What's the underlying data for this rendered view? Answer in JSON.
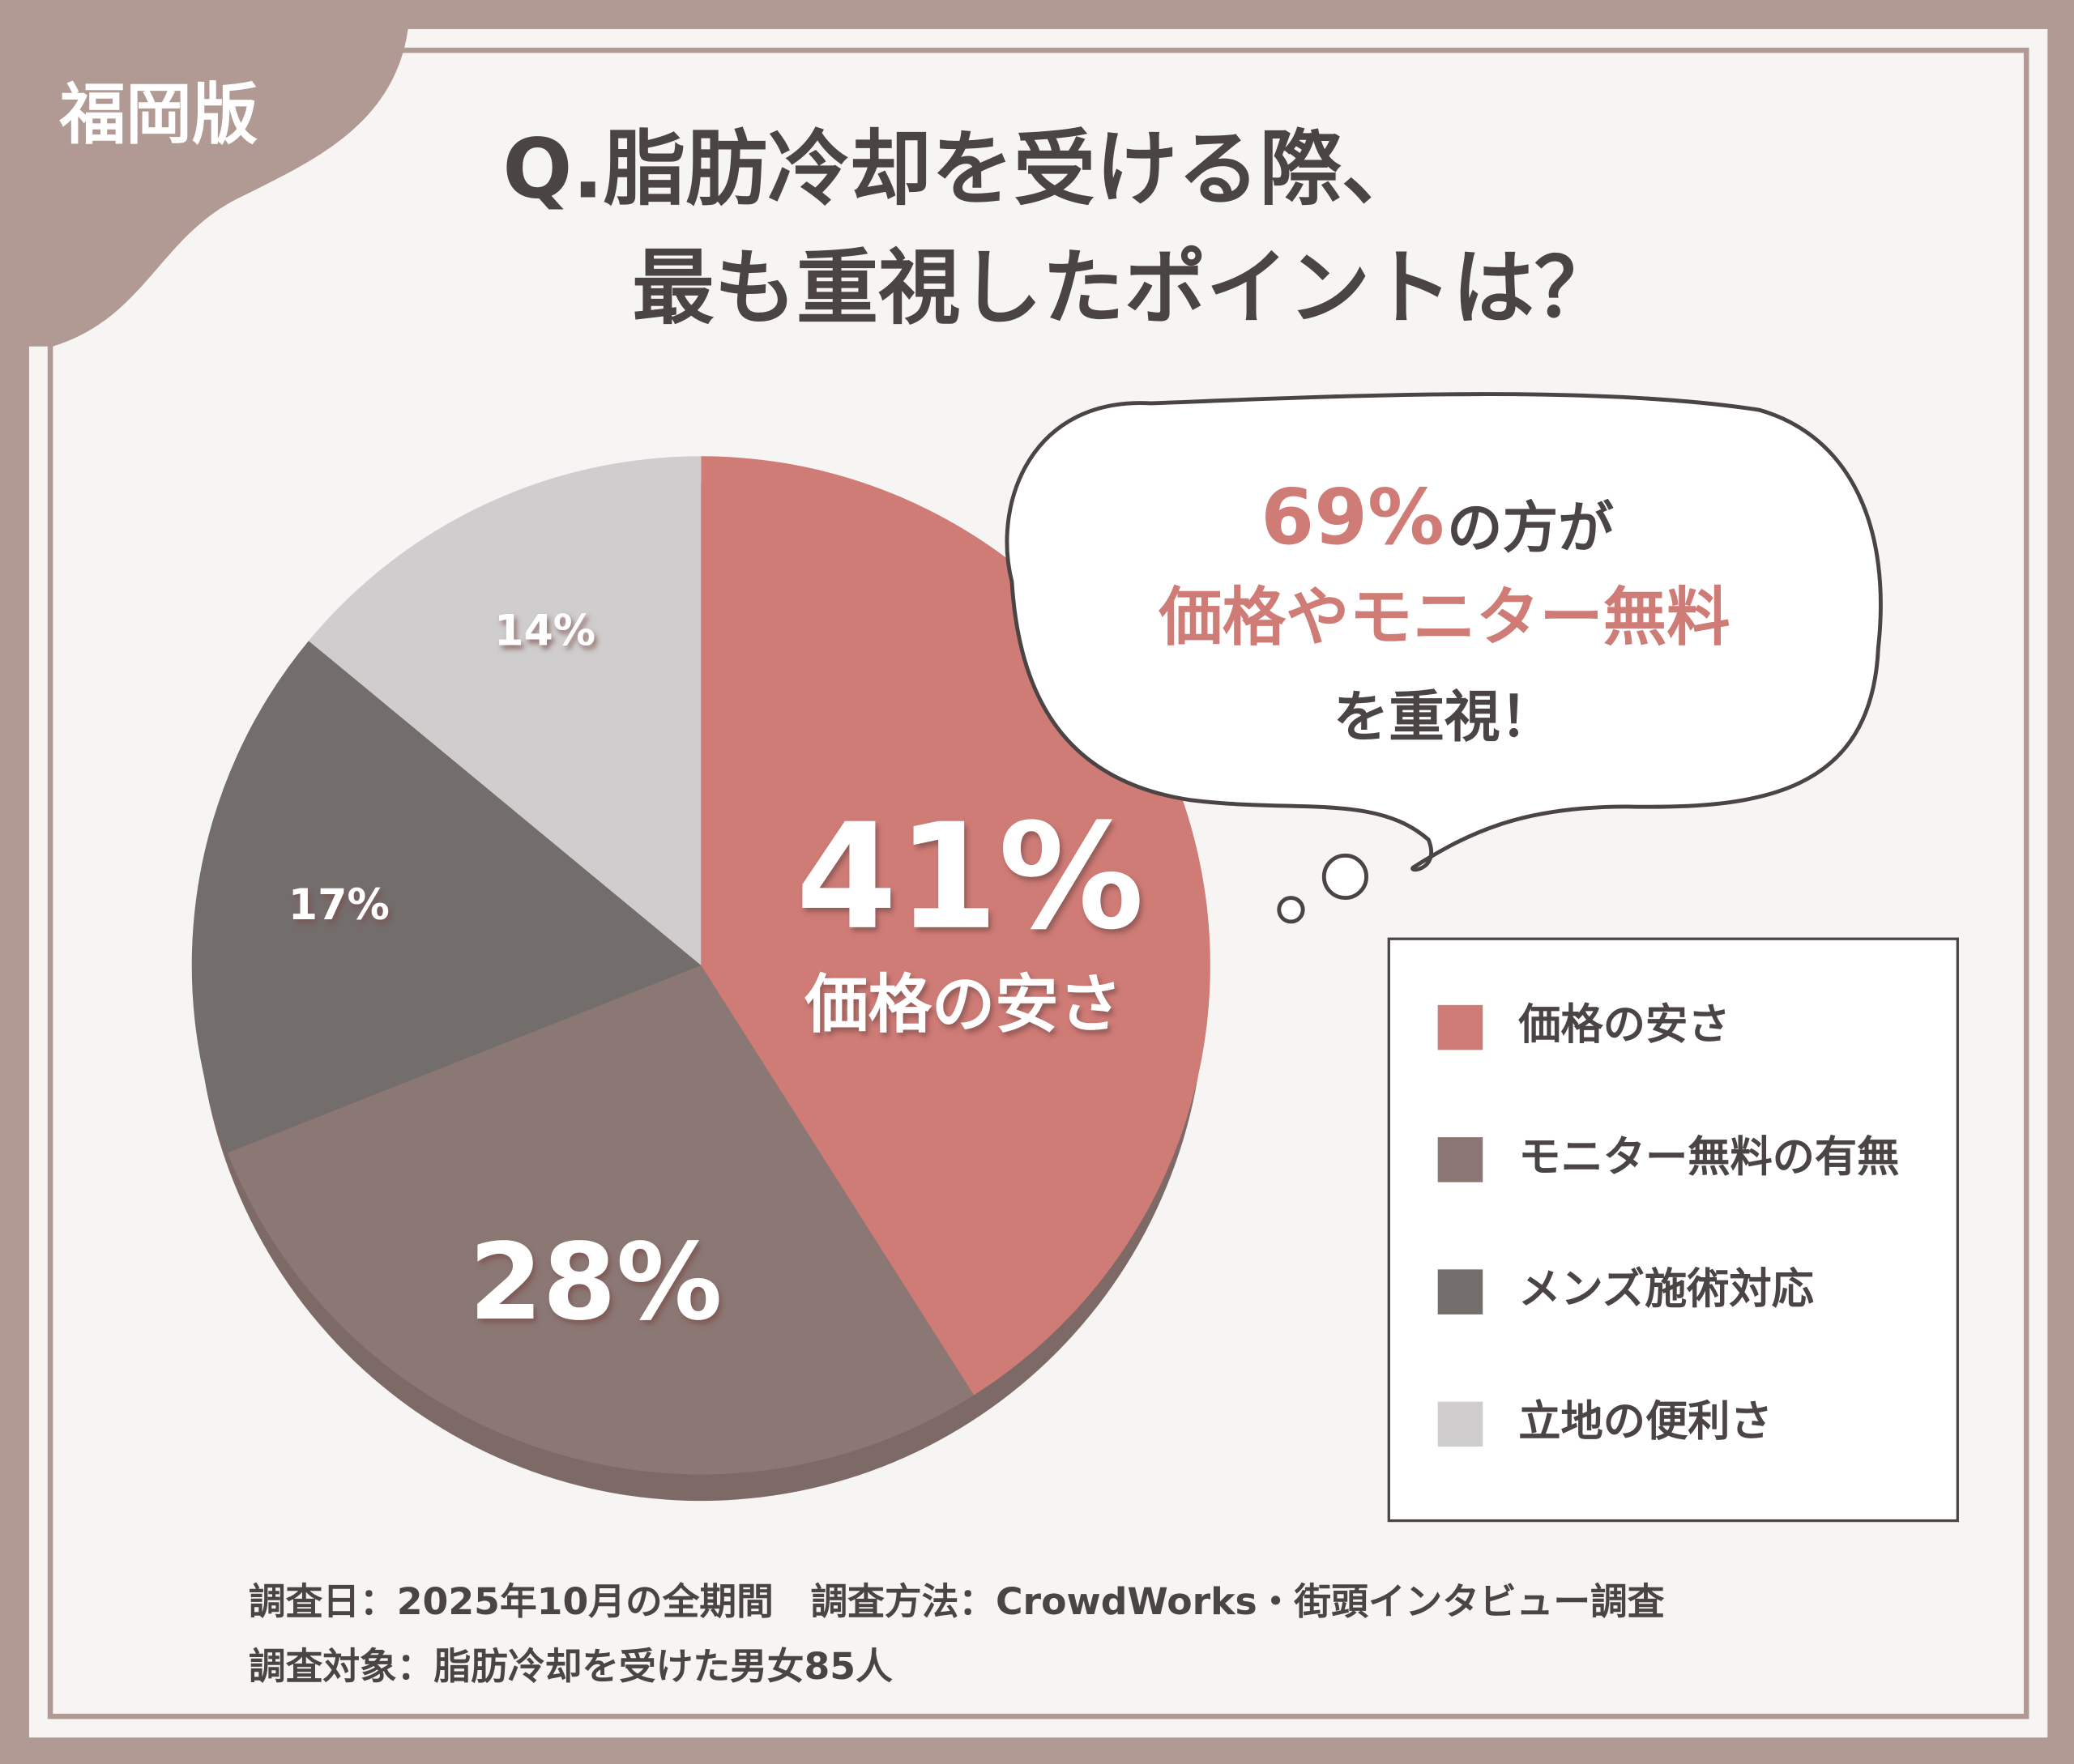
{
  "badge": "福岡版",
  "chart_data": {
    "type": "pie",
    "title": [
      "Q.脂肪冷却を受ける際、",
      "最も重視したポイントは？"
    ],
    "categories": [
      "価格の安さ",
      "モニター無料の有無",
      "メンズ施術対応",
      "立地の便利さ"
    ],
    "values": [
      41,
      28,
      17,
      14
    ],
    "value_labels": [
      "41%",
      "28%",
      "17%",
      "14%"
    ],
    "colors": [
      "#cf7b76",
      "#8b7774",
      "#736d6c",
      "#cfcdcd"
    ],
    "slice_caption": "価格の安さ",
    "callout": {
      "highlight": "69%",
      "line1_rest": "の方が",
      "line2": "価格やモニター無料",
      "line3": "を重視！"
    }
  },
  "footer": [
    "調査日：2025年10月の全期間　調査方法：CrowdWorks・街頭インタビュー調査",
    "調査対象：脂肪冷却を受けた男女85人"
  ]
}
